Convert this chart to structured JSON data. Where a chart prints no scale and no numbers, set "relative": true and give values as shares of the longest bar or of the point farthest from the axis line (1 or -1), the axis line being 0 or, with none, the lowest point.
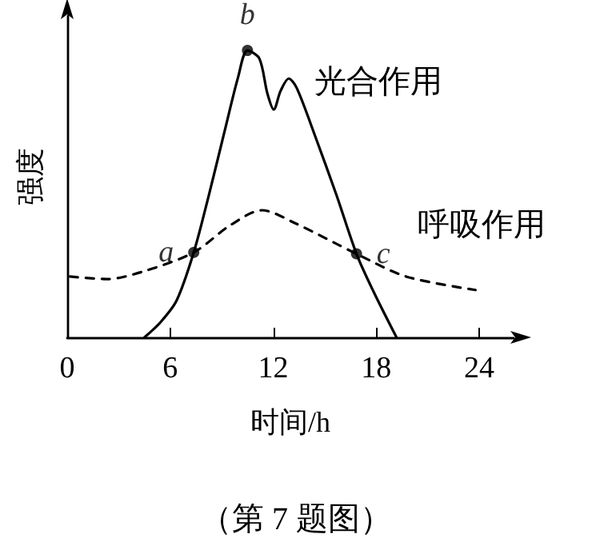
{
  "chart_data": {
    "type": "line",
    "relative": true,
    "xlabel": "时间/h",
    "ylabel": "强度",
    "xlim": [
      0,
      26
    ],
    "xticks": [
      0,
      6,
      12,
      18,
      24
    ],
    "grid": false,
    "legend": false,
    "marker": "none",
    "series": [
      {
        "name": "光合作用",
        "color": "#000000",
        "line_style": "solid",
        "x": [
          4.5,
          5.44,
          6.37,
          7.37,
          8.24,
          9.17,
          9.95,
          10.5,
          11.19,
          11.66,
          12.03,
          12.43,
          12.9,
          13.37,
          14.45,
          15.7,
          16.85,
          17.87,
          19.18
        ],
        "values": [
          0,
          0.053,
          0.128,
          0.296,
          0.493,
          0.719,
          0.906,
          1,
          0.972,
          0.85,
          0.794,
          0.859,
          0.902,
          0.869,
          0.7,
          0.493,
          0.291,
          0.156,
          0
        ]
      },
      {
        "name": "呼吸作用",
        "color": "#000000",
        "line_style": "dashed",
        "x": [
          0.16,
          2.33,
          4.5,
          7.37,
          9.48,
          11.35,
          13.2,
          16.85,
          19.74,
          23.78
        ],
        "values": [
          0.212,
          0.203,
          0.231,
          0.296,
          0.39,
          0.443,
          0.4,
          0.291,
          0.212,
          0.165
        ]
      }
    ],
    "annotations": [
      {
        "text": "a",
        "x": 7.37,
        "y": 0.296
      },
      {
        "text": "b",
        "x": 10.5,
        "y": 1
      },
      {
        "text": "c",
        "x": 16.85,
        "y": 0.291
      },
      "（第 7 题图）"
    ]
  }
}
